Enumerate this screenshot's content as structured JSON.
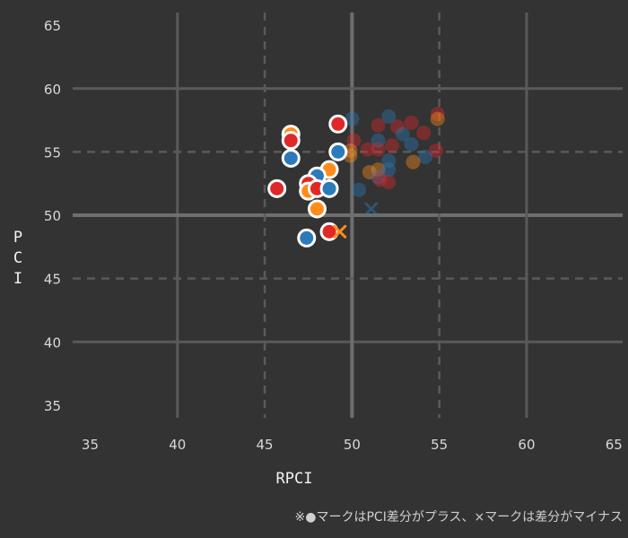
{
  "chart_data": {
    "type": "scatter",
    "xlabel": "RPCI",
    "ylabel": "PCI",
    "xlim": [
      34,
      65.5
    ],
    "ylim": [
      34,
      66
    ],
    "xticks": [
      35,
      40,
      45,
      50,
      55,
      60,
      65
    ],
    "yticks": [
      35,
      40,
      45,
      50,
      55,
      60,
      65
    ],
    "solid_grid": [
      40,
      50,
      60
    ],
    "dashed_grid": [
      45,
      55
    ],
    "highlight_line": 50,
    "grid": true,
    "note": "※●マークはPCI差分がプラス、×マークは差分がマイナス",
    "colors": {
      "background": "#333333",
      "blue": "#2b7bba",
      "orange": "#ff8c1a",
      "red": "#e02828",
      "grid": "#5a5a5a",
      "highlight": "#6e6e6e"
    },
    "highlighted_points": [
      {
        "x": 46.5,
        "y": 56.4,
        "color": "orange",
        "marker": "circle"
      },
      {
        "x": 46.5,
        "y": 55.9,
        "color": "red",
        "marker": "circle"
      },
      {
        "x": 46.5,
        "y": 54.5,
        "color": "blue",
        "marker": "circle"
      },
      {
        "x": 49.2,
        "y": 57.2,
        "color": "red",
        "marker": "circle"
      },
      {
        "x": 49.2,
        "y": 55.0,
        "color": "blue",
        "marker": "circle"
      },
      {
        "x": 48.7,
        "y": 53.6,
        "color": "orange",
        "marker": "circle"
      },
      {
        "x": 48.0,
        "y": 53.1,
        "color": "blue",
        "marker": "circle"
      },
      {
        "x": 47.5,
        "y": 52.5,
        "color": "red",
        "marker": "circle"
      },
      {
        "x": 47.5,
        "y": 51.9,
        "color": "orange",
        "marker": "circle"
      },
      {
        "x": 48.0,
        "y": 52.1,
        "color": "red",
        "marker": "circle"
      },
      {
        "x": 48.7,
        "y": 52.1,
        "color": "blue",
        "marker": "circle"
      },
      {
        "x": 45.7,
        "y": 52.1,
        "color": "red",
        "marker": "circle"
      },
      {
        "x": 48.0,
        "y": 50.5,
        "color": "orange",
        "marker": "circle"
      },
      {
        "x": 47.4,
        "y": 48.2,
        "color": "blue",
        "marker": "circle"
      },
      {
        "x": 48.7,
        "y": 48.7,
        "color": "red",
        "marker": "circle"
      },
      {
        "x": 49.3,
        "y": 48.7,
        "color": "orange",
        "marker": "cross"
      }
    ],
    "background_points": [
      {
        "x": 50.0,
        "y": 57.6,
        "color": "blue",
        "marker": "circle"
      },
      {
        "x": 52.1,
        "y": 57.8,
        "color": "blue",
        "marker": "circle"
      },
      {
        "x": 54.9,
        "y": 58.0,
        "color": "red",
        "marker": "circle"
      },
      {
        "x": 54.9,
        "y": 57.6,
        "color": "orange",
        "marker": "circle"
      },
      {
        "x": 51.5,
        "y": 57.1,
        "color": "red",
        "marker": "circle"
      },
      {
        "x": 52.6,
        "y": 57.0,
        "color": "red",
        "marker": "circle"
      },
      {
        "x": 53.4,
        "y": 57.3,
        "color": "red",
        "marker": "circle"
      },
      {
        "x": 52.9,
        "y": 56.4,
        "color": "blue",
        "marker": "circle"
      },
      {
        "x": 54.1,
        "y": 56.5,
        "color": "red",
        "marker": "circle"
      },
      {
        "x": 53.4,
        "y": 55.6,
        "color": "blue",
        "marker": "circle"
      },
      {
        "x": 50.1,
        "y": 55.9,
        "color": "red",
        "marker": "circle"
      },
      {
        "x": 51.5,
        "y": 55.9,
        "color": "blue",
        "marker": "circle"
      },
      {
        "x": 52.3,
        "y": 55.5,
        "color": "red",
        "marker": "circle"
      },
      {
        "x": 54.8,
        "y": 55.1,
        "color": "red",
        "marker": "circle"
      },
      {
        "x": 49.9,
        "y": 55.1,
        "color": "orange",
        "marker": "circle"
      },
      {
        "x": 50.9,
        "y": 55.2,
        "color": "red",
        "marker": "circle"
      },
      {
        "x": 51.5,
        "y": 55.2,
        "color": "red",
        "marker": "circle"
      },
      {
        "x": 49.9,
        "y": 54.7,
        "color": "orange",
        "marker": "circle"
      },
      {
        "x": 54.2,
        "y": 54.6,
        "color": "blue",
        "marker": "circle"
      },
      {
        "x": 52.1,
        "y": 54.3,
        "color": "blue",
        "marker": "circle"
      },
      {
        "x": 53.5,
        "y": 54.2,
        "color": "orange",
        "marker": "circle"
      },
      {
        "x": 51.5,
        "y": 53.6,
        "color": "orange",
        "marker": "circle"
      },
      {
        "x": 52.1,
        "y": 53.6,
        "color": "blue",
        "marker": "circle"
      },
      {
        "x": 51.0,
        "y": 53.4,
        "color": "orange",
        "marker": "circle"
      },
      {
        "x": 51.5,
        "y": 53.0,
        "color": "blue",
        "marker": "circle"
      },
      {
        "x": 51.6,
        "y": 52.8,
        "color": "red",
        "marker": "circle"
      },
      {
        "x": 52.1,
        "y": 52.6,
        "color": "red",
        "marker": "circle"
      },
      {
        "x": 50.4,
        "y": 52.0,
        "color": "blue",
        "marker": "circle"
      },
      {
        "x": 51.1,
        "y": 50.5,
        "color": "blue",
        "marker": "cross"
      }
    ]
  }
}
